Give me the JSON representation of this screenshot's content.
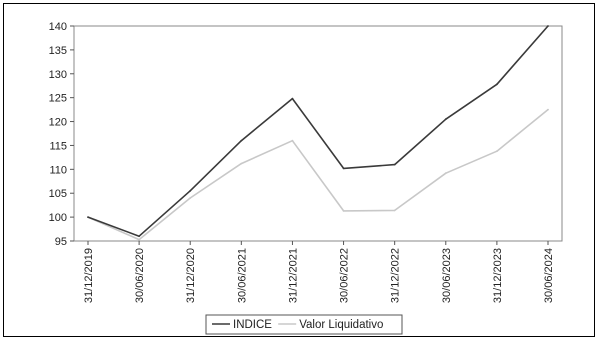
{
  "chart_data": {
    "type": "line",
    "x": [
      "31/12/2019",
      "30/06/2020",
      "31/12/2020",
      "30/06/2021",
      "31/12/2021",
      "30/06/2022",
      "31/12/2022",
      "30/06/2023",
      "31/12/2023",
      "30/06/2024"
    ],
    "series": [
      {
        "name": "INDICE",
        "color": "#3a3a3a",
        "values": [
          100,
          96,
          105.5,
          116,
          124.8,
          110.2,
          111,
          120.5,
          127.8,
          140
        ]
      },
      {
        "name": "Valor Liquidativo",
        "color": "#c8c8c8",
        "values": [
          100,
          95.3,
          104,
          111.2,
          116,
          101.3,
          101.4,
          109.2,
          113.8,
          122.5
        ]
      }
    ],
    "ylim": [
      95,
      140
    ],
    "yticks": [
      95,
      100,
      105,
      110,
      115,
      120,
      125,
      130,
      135,
      140
    ],
    "grid": false,
    "legend": "bottom-center",
    "title": "",
    "xlabel": "",
    "ylabel": ""
  }
}
